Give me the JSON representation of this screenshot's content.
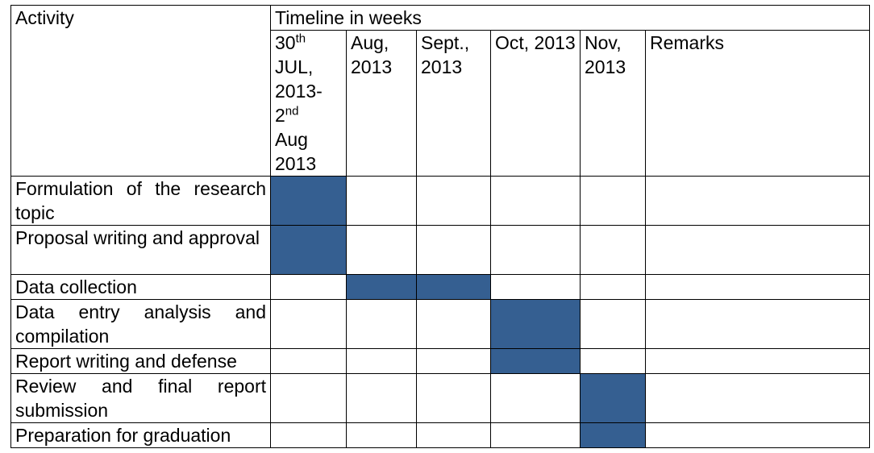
{
  "table": {
    "header": {
      "activity": "Activity",
      "timeline": "Timeline in weeks",
      "first_week": [
        "30",
        "th",
        "JUL, 2013-",
        "2",
        "nd",
        "Aug 2013"
      ],
      "columns": [
        "Aug, 2013",
        "Sept., 2013",
        "Oct, 2013",
        "Nov, 2013",
        "Remarks"
      ]
    },
    "rows": [
      "Formulation of the research topic",
      "Proposal writing and approval",
      "Data collection",
      "Data entry analysis and compilation",
      "Report writing and defense",
      "Review and final report submission",
      "Preparation for graduation"
    ]
  }
}
